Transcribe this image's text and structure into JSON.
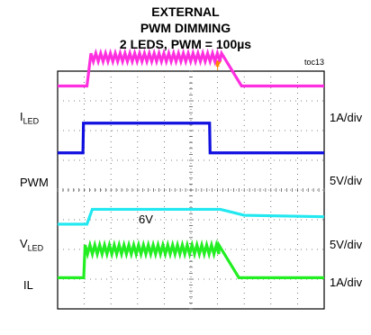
{
  "header": {
    "title_line1": "EXTERNAL",
    "title_line2": "PWM DIMMING",
    "title_line3": "2 LEDS, PWM = 100µs",
    "figure_id": "toc13",
    "trigger_marker": "T"
  },
  "channels": {
    "iled": {
      "label_main": "I",
      "label_sub": "LED",
      "scale": "1A/div"
    },
    "pwm": {
      "label_main": "PWM",
      "scale": "5V/div"
    },
    "vled": {
      "label_main": "V",
      "label_sub": "LED",
      "scale": "5V/div",
      "annotation": "6V"
    },
    "il": {
      "label_main": "IL",
      "scale": "1A/div"
    }
  },
  "colors": {
    "iled": "#ff2fe0",
    "pwm": "#1010e0",
    "vled": "#22e8f0",
    "il": "#22ee22",
    "trigger": "#ff8800",
    "grid": "#000000"
  },
  "chart_data": {
    "type": "line",
    "title": "EXTERNAL PWM DIMMING 2 LEDS, PWM = 100µs",
    "grid": true,
    "divisions": {
      "x": 10,
      "y": 8
    },
    "series": [
      {
        "name": "ILED",
        "scale": "1A/div",
        "x": [
          0,
          1.1,
          1.25,
          6.15,
          6.9,
          10
        ],
        "y": [
          7.5,
          7.5,
          8.6,
          8.6,
          7.5,
          7.5
        ]
      },
      {
        "name": "PWM",
        "scale": "5V/div",
        "x": [
          0,
          0.95,
          0.97,
          5.7,
          5.72,
          10
        ],
        "y": [
          5.25,
          5.25,
          6.25,
          6.25,
          5.25,
          5.25
        ]
      },
      {
        "name": "VLED",
        "scale": "5V/div",
        "x": [
          0,
          1.1,
          1.3,
          6.1,
          7.0,
          10
        ],
        "y": [
          2.85,
          2.85,
          3.35,
          3.35,
          3.15,
          3.1
        ]
      },
      {
        "name": "IL",
        "scale": "1A/div",
        "x": [
          0,
          0.98,
          1.03,
          6.05,
          6.8,
          10
        ],
        "y": [
          1.05,
          1.05,
          2.15,
          2.15,
          1.05,
          1.05
        ]
      }
    ]
  }
}
